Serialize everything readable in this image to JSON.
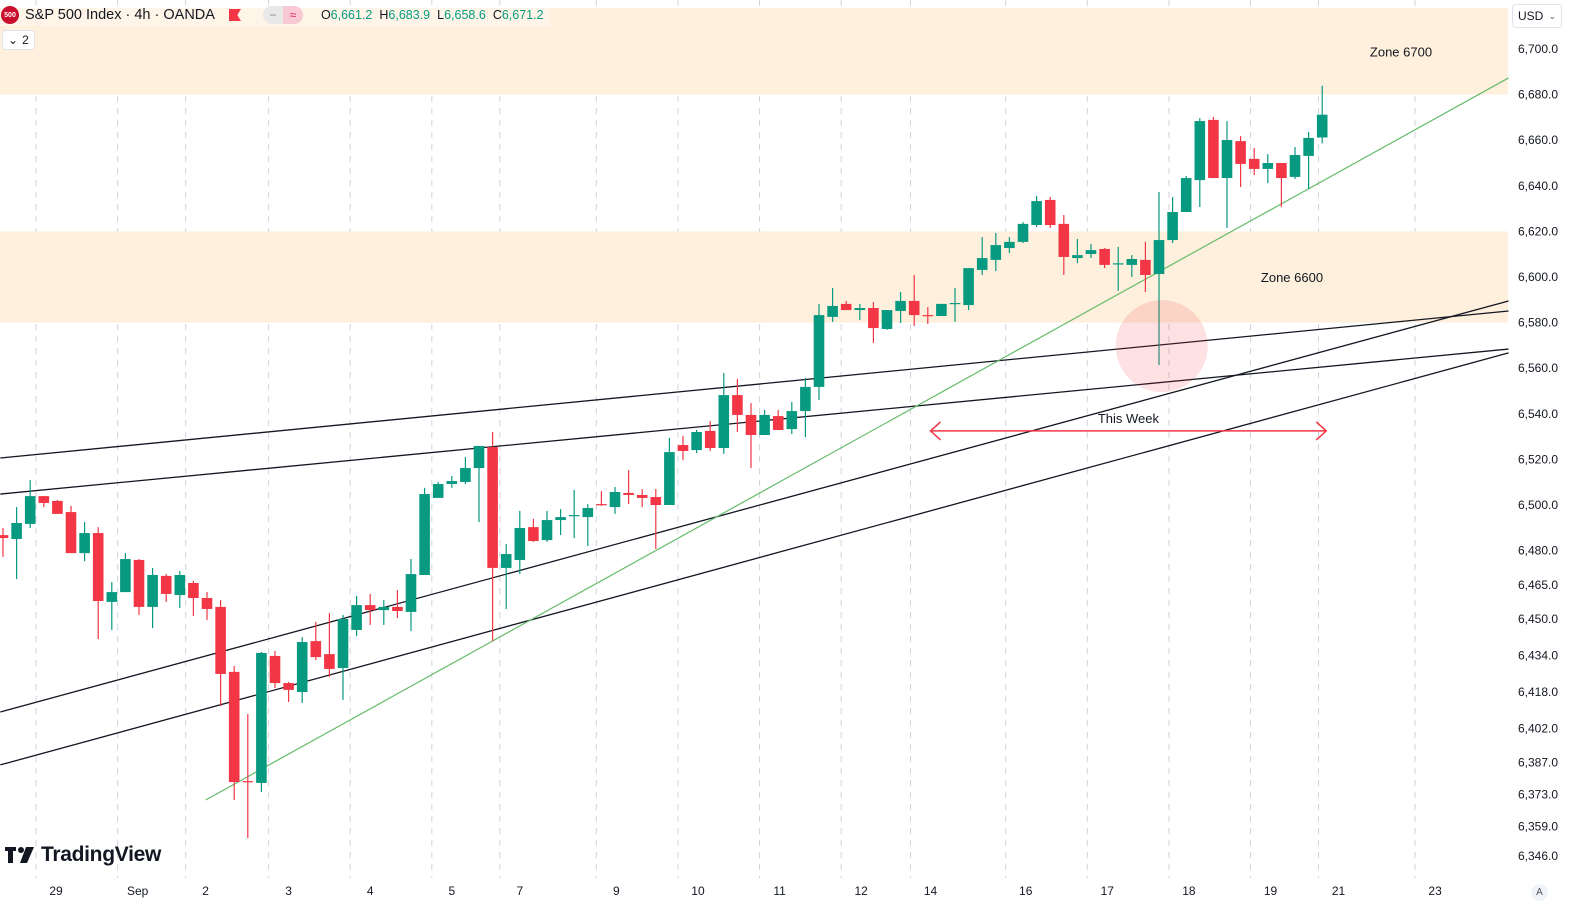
{
  "header": {
    "symbol_badge": "500",
    "title": "S&P 500 Index · 4h · OANDA",
    "pill_left": "−",
    "pill_right": "≈",
    "ohlc": {
      "o_label": "O",
      "o": "6,661.2",
      "h_label": "H",
      "h": "6,683.9",
      "l_label": "L",
      "l": "6,658.6",
      "c_label": "C",
      "c": "6,671.2"
    },
    "indicators_toggle": "2"
  },
  "currency": "USD",
  "auto_scale": "A",
  "brand": "TradingView",
  "colors": {
    "up": "#089981",
    "down": "#F23645",
    "zone": "#FEF0DC",
    "trendline": "#131722",
    "green_trendline": "#66BB6A",
    "arrow": "#F23645",
    "highlight": "rgba(242,54,69,0.15)"
  },
  "chart_data": {
    "type": "candlestick",
    "title": "S&P 500 Index · 4h · OANDA",
    "candles_ohlc": [
      [
        6486.8,
        6489.9,
        6477.2,
        6485.5
      ],
      [
        6485.1,
        6499.1,
        6467.5,
        6492.1
      ],
      [
        6491.7,
        6510.9,
        6489.9,
        6503.9
      ],
      [
        6503.9,
        6503.9,
        6499.1,
        6500.9
      ],
      [
        6501.8,
        6502.2,
        6496.1,
        6496.1
      ],
      [
        6496.9,
        6499.6,
        6478.9,
        6478.9
      ],
      [
        6478.9,
        6492.5,
        6475.4,
        6487.7
      ],
      [
        6487.7,
        6490.3,
        6441.2,
        6457.9
      ],
      [
        6457.5,
        6466.2,
        6445.2,
        6461.8
      ],
      [
        6461.8,
        6478.9,
        6461.8,
        6476.3
      ],
      [
        6475.9,
        6476.3,
        6451.8,
        6455.3
      ],
      [
        6455.3,
        6472.4,
        6446.0,
        6469.3
      ],
      [
        6468.9,
        6469.7,
        6457.5,
        6461.0
      ],
      [
        6460.5,
        6471.0,
        6454.8,
        6469.3
      ],
      [
        6465.8,
        6466.7,
        6451.3,
        6459.2
      ],
      [
        6459.2,
        6461.8,
        6449.6,
        6454.4
      ],
      [
        6455.3,
        6458.3,
        6411.8,
        6425.9
      ],
      [
        6426.8,
        6429.4,
        6370.6,
        6378.5
      ],
      [
        6378.9,
        6408.3,
        6353.9,
        6378.5
      ],
      [
        6378.1,
        6435.5,
        6374.1,
        6435.1
      ],
      [
        6433.8,
        6436.0,
        6419.7,
        6421.9
      ],
      [
        6421.9,
        6422.4,
        6413.6,
        6418.9
      ],
      [
        6418.0,
        6442.1,
        6413.2,
        6439.9
      ],
      [
        6440.3,
        6448.7,
        6432.0,
        6433.3
      ],
      [
        6434.6,
        6452.6,
        6424.6,
        6428.1
      ],
      [
        6428.5,
        6451.8,
        6414.5,
        6450.0
      ],
      [
        6445.2,
        6460.1,
        6442.5,
        6456.1
      ],
      [
        6456.1,
        6461.0,
        6447.4,
        6453.9
      ],
      [
        6453.9,
        6458.3,
        6447.4,
        6455.3
      ],
      [
        6455.3,
        6462.7,
        6450.4,
        6453.5
      ],
      [
        6453.1,
        6476.3,
        6444.7,
        6469.7
      ],
      [
        6469.3,
        6507.5,
        6469.3,
        6504.8
      ],
      [
        6503.1,
        6510.1,
        6503.1,
        6509.2
      ],
      [
        6509.2,
        6512.7,
        6507.5,
        6510.5
      ],
      [
        6510.1,
        6521.0,
        6509.2,
        6516.2
      ],
      [
        6516.2,
        6525.9,
        6492.5,
        6525.9
      ],
      [
        6525.4,
        6532.0,
        6440.3,
        6472.4
      ],
      [
        6472.4,
        6482.9,
        6454.4,
        6478.5
      ],
      [
        6475.9,
        6497.4,
        6469.7,
        6489.9
      ],
      [
        6490.3,
        6493.9,
        6483.8,
        6484.2
      ],
      [
        6484.6,
        6497.4,
        6483.8,
        6493.4
      ],
      [
        6493.4,
        6498.2,
        6486.8,
        6494.7
      ],
      [
        6495.2,
        6506.6,
        6485.5,
        6495.6
      ],
      [
        6494.7,
        6500.4,
        6482.0,
        6498.7
      ],
      [
        6500.4,
        6506.1,
        6499.6,
        6500.0
      ],
      [
        6499.1,
        6507.9,
        6496.1,
        6505.7
      ],
      [
        6505.3,
        6515.3,
        6500.4,
        6504.4
      ],
      [
        6504.4,
        6507.0,
        6499.1,
        6503.1
      ],
      [
        6503.5,
        6507.0,
        6480.7,
        6500.0
      ],
      [
        6500.0,
        6529.4,
        6500.0,
        6523.2
      ],
      [
        6526.3,
        6530.3,
        6519.7,
        6523.7
      ],
      [
        6524.1,
        6532.9,
        6522.8,
        6532.0
      ],
      [
        6532.5,
        6536.8,
        6523.7,
        6525.0
      ],
      [
        6525.0,
        6557.9,
        6522.4,
        6548.2
      ],
      [
        6548.2,
        6555.3,
        6532.0,
        6539.5
      ],
      [
        6539.5,
        6544.7,
        6516.2,
        6530.7
      ],
      [
        6530.7,
        6541.7,
        6530.7,
        6539.5
      ],
      [
        6539.0,
        6541.7,
        6532.9,
        6532.9
      ],
      [
        6533.3,
        6545.2,
        6531.1,
        6541.2
      ],
      [
        6541.2,
        6555.7,
        6529.8,
        6551.8
      ],
      [
        6551.8,
        6588.2,
        6546.0,
        6583.3
      ],
      [
        6582.5,
        6595.2,
        6580.3,
        6587.3
      ],
      [
        6588.2,
        6589.5,
        6585.5,
        6585.5
      ],
      [
        6585.5,
        6588.2,
        6581.1,
        6586.4
      ],
      [
        6586.4,
        6589.0,
        6571.1,
        6577.6
      ],
      [
        6577.2,
        6585.5,
        6576.8,
        6585.5
      ],
      [
        6585.1,
        6593.4,
        6579.8,
        6589.5
      ],
      [
        6589.5,
        6600.9,
        6578.5,
        6583.3
      ],
      [
        6583.3,
        6586.8,
        6579.4,
        6582.9
      ],
      [
        6582.9,
        6588.2,
        6582.9,
        6588.2
      ],
      [
        6588.2,
        6595.2,
        6580.3,
        6588.6
      ],
      [
        6587.7,
        6603.9,
        6585.5,
        6603.9
      ],
      [
        6603.1,
        6617.5,
        6600.9,
        6608.3
      ],
      [
        6607.5,
        6619.3,
        6602.6,
        6614.0
      ],
      [
        6612.7,
        6617.5,
        6610.5,
        6615.4
      ],
      [
        6615.4,
        6624.1,
        6614.9,
        6623.3
      ],
      [
        6622.8,
        6635.5,
        6621.9,
        6633.3
      ],
      [
        6633.8,
        6635.1,
        6621.5,
        6622.8
      ],
      [
        6623.3,
        6627.2,
        6600.9,
        6608.8
      ],
      [
        6608.3,
        6616.7,
        6606.1,
        6609.6
      ],
      [
        6610.1,
        6614.5,
        6608.3,
        6611.8
      ],
      [
        6612.3,
        6612.7,
        6603.9,
        6605.3
      ],
      [
        6605.7,
        6613.2,
        6593.9,
        6606.0
      ],
      [
        6605.3,
        6609.6,
        6600.0,
        6607.9
      ],
      [
        6607.5,
        6615.4,
        6593.4,
        6600.9
      ],
      [
        6601.3,
        6637.3,
        6561.4,
        6616.2
      ],
      [
        6616.2,
        6635.1,
        6614.9,
        6628.5
      ],
      [
        6628.5,
        6644.3,
        6628.5,
        6643.4
      ],
      [
        6642.5,
        6669.7,
        6630.7,
        6668.4
      ],
      [
        6668.9,
        6670.2,
        6643.4,
        6643.4
      ],
      [
        6643.4,
        6668.4,
        6621.5,
        6660.1
      ],
      [
        6659.6,
        6661.8,
        6639.5,
        6649.6
      ],
      [
        6651.8,
        6656.6,
        6644.7,
        6647.4
      ],
      [
        6647.4,
        6653.9,
        6641.2,
        6650.0
      ],
      [
        6650.0,
        6650.0,
        6630.7,
        6643.4
      ],
      [
        6643.9,
        6657.0,
        6643.0,
        6653.5
      ],
      [
        6653.1,
        6663.6,
        6638.6,
        6661.0
      ],
      [
        6661.2,
        6683.9,
        6658.6,
        6671.2
      ]
    ],
    "y_ticks": [
      "6,700.0",
      "6,680.0",
      "6,660.0",
      "6,640.0",
      "6,620.0",
      "6,600.0",
      "6,580.0",
      "6,560.0",
      "6,540.0",
      "6,520.0",
      "6,500.0",
      "6,480.0",
      "6,465.0",
      "6,450.0",
      "6,434.0",
      "6,418.0",
      "6,402.0",
      "6,387.0",
      "6,373.0",
      "6,359.0",
      "6,346.0"
    ],
    "x_ticks": [
      {
        "label": "29",
        "bar": 3.9
      },
      {
        "label": "Sep",
        "bar": 9.9
      },
      {
        "label": "2",
        "bar": 14.9
      },
      {
        "label": "3",
        "bar": 21.0
      },
      {
        "label": "4",
        "bar": 27.0
      },
      {
        "label": "5",
        "bar": 33.0
      },
      {
        "label": "7",
        "bar": 38.0
      },
      {
        "label": "9",
        "bar": 45.1
      },
      {
        "label": "10",
        "bar": 51.1
      },
      {
        "label": "11",
        "bar": 57.1
      },
      {
        "label": "12",
        "bar": 63.1
      },
      {
        "label": "14",
        "bar": 68.2
      },
      {
        "label": "16",
        "bar": 75.2
      },
      {
        "label": "17",
        "bar": 81.2
      },
      {
        "label": "18",
        "bar": 87.2
      },
      {
        "label": "19",
        "bar": 93.2
      },
      {
        "label": "21",
        "bar": 98.2
      },
      {
        "label": "23",
        "bar": 105.3
      }
    ],
    "ylim": [
      6342,
      6720
    ],
    "grid": "vertical dashed",
    "annotations": {
      "zones": [
        {
          "label": "Zone 6700",
          "from": 6680,
          "to": 6719
        },
        {
          "label": "Zone 6600",
          "from": 6580,
          "to": 6620
        }
      ],
      "trendlines": [
        {
          "from": [
            -0.2,
            6520.6
          ],
          "to": [
            110.7,
            6585.1
          ],
          "color": "black"
        },
        {
          "from": [
            -0.2,
            6504.8
          ],
          "to": [
            110.7,
            6568.4
          ],
          "color": "black"
        },
        {
          "from": [
            -0.2,
            6409.2
          ],
          "to": [
            110.7,
            6589.5
          ],
          "color": "black"
        },
        {
          "from": [
            -0.2,
            6386.0
          ],
          "to": [
            110.7,
            6566.7
          ],
          "color": "black"
        },
        {
          "from": [
            14.9,
            6370.6
          ],
          "to": [
            110.7,
            6687.3
          ],
          "color": "green"
        }
      ],
      "highlight_circle": {
        "bar": 85.2,
        "price": 6569.7
      },
      "range_arrow": {
        "label": "This Week",
        "from_bar": 68.2,
        "to_bar": 97.3,
        "price": 6532.5
      }
    }
  }
}
